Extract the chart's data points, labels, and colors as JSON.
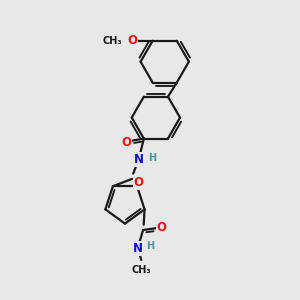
{
  "bg_color": "#e8e8e8",
  "bond_color": "#1a1a1a",
  "bond_width": 1.6,
  "atom_colors": {
    "O": "#ee1111",
    "N": "#1111cc",
    "H": "#4a9a9a",
    "C": "#1a1a1a"
  },
  "font_size_atom": 8.5,
  "font_size_small": 7.0
}
